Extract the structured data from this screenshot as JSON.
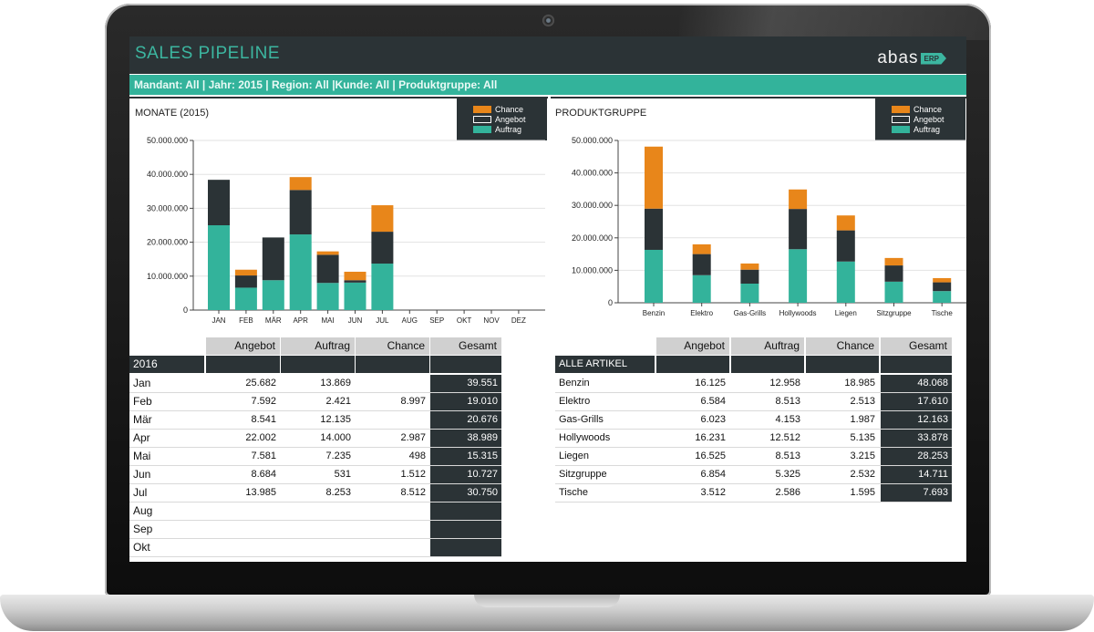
{
  "app": {
    "title": "SALES PIPELINE",
    "logo_word": "abas",
    "logo_badge": "ERP",
    "filters": "Mandant: All | Jahr: 2015 | Region: All |Kunde: All | Produktgruppe: All"
  },
  "colors": {
    "chance": "#e8861a",
    "angebot": "#2b3336",
    "auftrag": "#33b39b",
    "dark": "#2b3336",
    "accent": "#3cb6a0"
  },
  "legend": [
    "Chance",
    "Angebot",
    "Auftrag"
  ],
  "chart_data": [
    {
      "type": "bar",
      "title": "MONATE (2015)",
      "categories": [
        "JAN",
        "FEB",
        "MÄR",
        "APR",
        "MAI",
        "JUN",
        "JUL",
        "AUG",
        "SEP",
        "OKT",
        "NOV",
        "DEZ"
      ],
      "yticks": [
        "50.000.000",
        "40.000.000",
        "30.000.000",
        "20.000.000",
        "10.000.000",
        "0"
      ],
      "ylim": [
        0,
        50000000
      ],
      "stacked": true,
      "series": [
        {
          "name": "Auftrag",
          "values": [
            25000000,
            6600000,
            8800000,
            22300000,
            8000000,
            8100000,
            13700000,
            0,
            0,
            0,
            0,
            0
          ]
        },
        {
          "name": "Angebot",
          "values": [
            13400000,
            3600000,
            12600000,
            13100000,
            8300000,
            700000,
            9400000,
            0,
            0,
            0,
            0,
            0
          ]
        },
        {
          "name": "Chance",
          "values": [
            0,
            1700000,
            0,
            3800000,
            1000000,
            2500000,
            7800000,
            0,
            0,
            0,
            0,
            0
          ]
        }
      ]
    },
    {
      "type": "bar",
      "title": "PRODUKTGRUPPE",
      "categories": [
        "Benzin",
        "Elektro",
        "Gas-Grills",
        "Hollywoods",
        "Liegen",
        "Sitzgruppe",
        "Tische"
      ],
      "yticks": [
        "50.000.000",
        "40.000.000",
        "30.000.000",
        "20.000.000",
        "10.000.000",
        "0"
      ],
      "ylim": [
        0,
        50000000
      ],
      "stacked": true,
      "series": [
        {
          "name": "Auftrag",
          "values": [
            16300000,
            8500000,
            5900000,
            16500000,
            12700000,
            6500000,
            3600000
          ]
        },
        {
          "name": "Angebot",
          "values": [
            12700000,
            6500000,
            4300000,
            12400000,
            9600000,
            5000000,
            2700000
          ]
        },
        {
          "name": "Chance",
          "values": [
            19100000,
            3000000,
            1900000,
            6000000,
            4600000,
            2300000,
            1300000
          ]
        }
      ]
    }
  ],
  "table_left": {
    "headers": [
      "Angebot",
      "Auftrag",
      "Chance",
      "Gesamt"
    ],
    "group": "2016",
    "rows": [
      {
        "label": "Jan",
        "angebot": "25.682",
        "auftrag": "13.869",
        "chance": "",
        "gesamt": "39.551"
      },
      {
        "label": "Feb",
        "angebot": "7.592",
        "auftrag": "2.421",
        "chance": "8.997",
        "gesamt": "19.010"
      },
      {
        "label": "Mär",
        "angebot": "8.541",
        "auftrag": "12.135",
        "chance": "",
        "gesamt": "20.676"
      },
      {
        "label": "Apr",
        "angebot": "22.002",
        "auftrag": "14.000",
        "chance": "2.987",
        "gesamt": "38.989"
      },
      {
        "label": "Mai",
        "angebot": "7.581",
        "auftrag": "7.235",
        "chance": "498",
        "gesamt": "15.315"
      },
      {
        "label": "Jun",
        "angebot": "8.684",
        "auftrag": "531",
        "chance": "1.512",
        "gesamt": "10.727"
      },
      {
        "label": "Jul",
        "angebot": "13.985",
        "auftrag": "8.253",
        "chance": "8.512",
        "gesamt": "30.750"
      },
      {
        "label": "Aug",
        "angebot": "",
        "auftrag": "",
        "chance": "",
        "gesamt": ""
      },
      {
        "label": "Sep",
        "angebot": "",
        "auftrag": "",
        "chance": "",
        "gesamt": ""
      },
      {
        "label": "Okt",
        "angebot": "",
        "auftrag": "",
        "chance": "",
        "gesamt": ""
      }
    ]
  },
  "table_right": {
    "headers": [
      "Angebot",
      "Auftrag",
      "Chance",
      "Gesamt"
    ],
    "group": "ALLE ARTIKEL",
    "rows": [
      {
        "label": "Benzin",
        "angebot": "16.125",
        "auftrag": "12.958",
        "chance": "18.985",
        "gesamt": "48.068"
      },
      {
        "label": "Elektro",
        "angebot": "6.584",
        "auftrag": "8.513",
        "chance": "2.513",
        "gesamt": "17.610"
      },
      {
        "label": "Gas-Grills",
        "angebot": "6.023",
        "auftrag": "4.153",
        "chance": "1.987",
        "gesamt": "12.163"
      },
      {
        "label": "Hollywoods",
        "angebot": "16.231",
        "auftrag": "12.512",
        "chance": "5.135",
        "gesamt": "33.878"
      },
      {
        "label": "Liegen",
        "angebot": "16.525",
        "auftrag": "8.513",
        "chance": "3.215",
        "gesamt": "28.253"
      },
      {
        "label": "Sitzgruppe",
        "angebot": "6.854",
        "auftrag": "5.325",
        "chance": "2.532",
        "gesamt": "14.711"
      },
      {
        "label": "Tische",
        "angebot": "3.512",
        "auftrag": "2.586",
        "chance": "1.595",
        "gesamt": "7.693"
      }
    ]
  }
}
